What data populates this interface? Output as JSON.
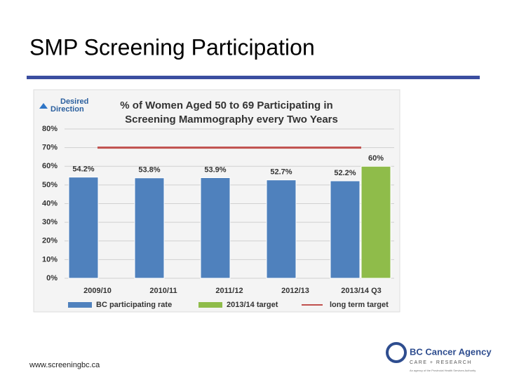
{
  "slide": {
    "title": "SMP Screening Participation",
    "footer": "www.screeningbc.ca",
    "logo": {
      "name": "BC Cancer Agency",
      "tagline": "CARE + RESEARCH",
      "note": "An agency of the Provincial Health Services Authority"
    }
  },
  "chart_data": {
    "type": "bar",
    "title": [
      "% of Women Aged 50 to 69 Participating in",
      "Screening Mammography every Two Years"
    ],
    "annotation": [
      "Desired",
      "Direction"
    ],
    "categories": [
      "2009/10",
      "2010/11",
      "2011/12",
      "2012/13",
      "2013/14 Q3"
    ],
    "series": [
      {
        "name": "BC participating rate",
        "color": "#4f81bd",
        "values": [
          54.2,
          53.8,
          53.9,
          52.7,
          52.2
        ],
        "value_labels": [
          "54.2%",
          "53.8%",
          "53.9%",
          "52.7%",
          "52.2%"
        ]
      },
      {
        "name": "2013/14 target",
        "color": "#8fbc4a",
        "values": [
          null,
          null,
          null,
          null,
          60
        ],
        "value_labels": [
          null,
          null,
          null,
          null,
          "60%"
        ]
      },
      {
        "name": "long term target",
        "color": "#c0504d",
        "type": "line",
        "values": [
          70,
          70,
          70,
          70,
          70
        ]
      }
    ],
    "ylim": [
      0,
      80
    ],
    "yticks": [
      {
        "value": 0,
        "label": "0%"
      },
      {
        "value": 10,
        "label": "10%"
      },
      {
        "value": 20,
        "label": "20%"
      },
      {
        "value": 30,
        "label": "30%"
      },
      {
        "value": 40,
        "label": "40%"
      },
      {
        "value": 50,
        "label": "50%"
      },
      {
        "value": 60,
        "label": "60%"
      },
      {
        "value": 70,
        "label": "70%"
      },
      {
        "value": 80,
        "label": "80%"
      }
    ],
    "grid": true
  }
}
